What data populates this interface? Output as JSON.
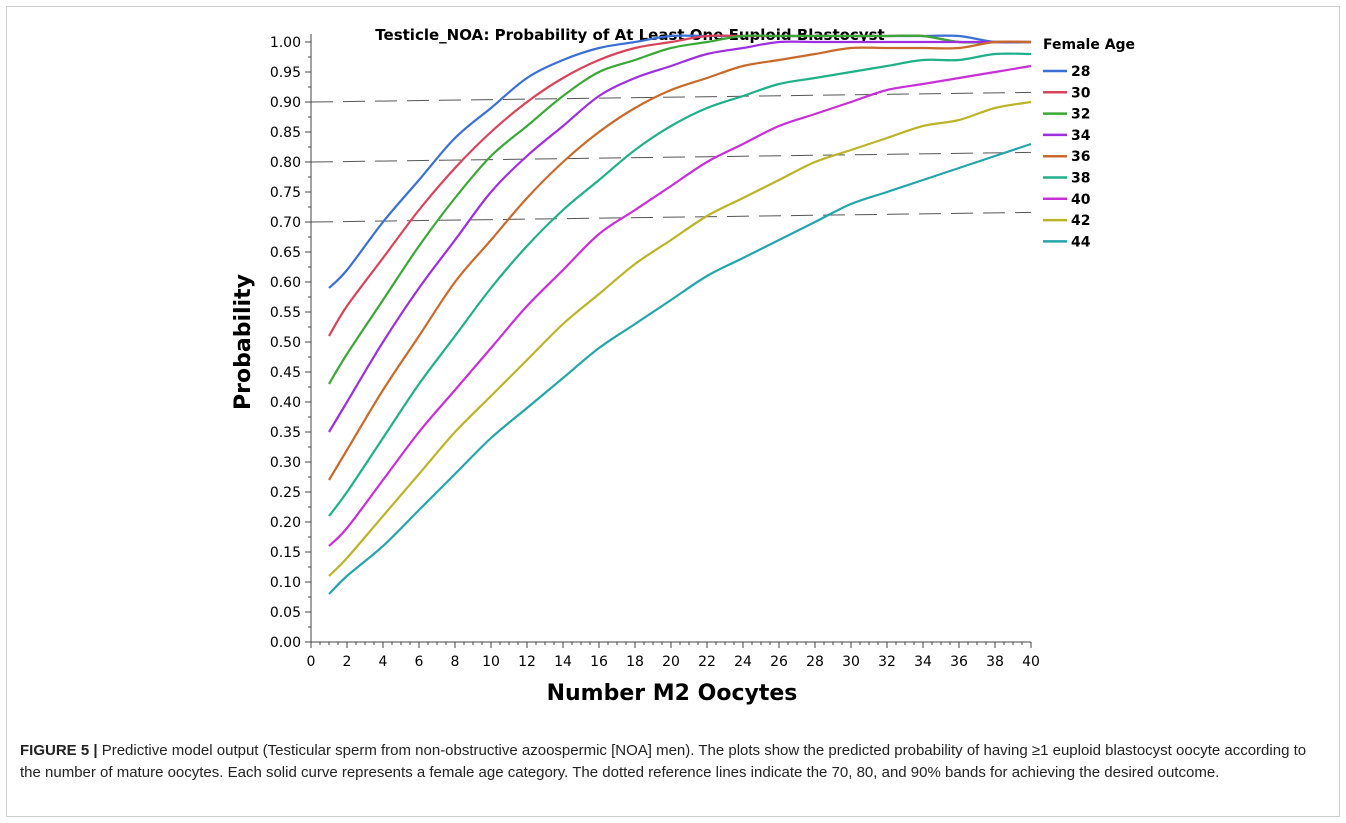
{
  "chart_data": {
    "type": "line",
    "title": "Testicle_NOA: Probability of At Least One Euploid Blastocyst",
    "xlabel": "Number M2 Oocytes",
    "ylabel": "Probability",
    "xlim": [
      0,
      40
    ],
    "ylim": [
      0,
      1.0
    ],
    "x_ticks": [
      "0",
      "2",
      "4",
      "6",
      "8",
      "10",
      "12",
      "14",
      "16",
      "18",
      "20",
      "22",
      "24",
      "26",
      "28",
      "30",
      "32",
      "34",
      "36",
      "38",
      "40"
    ],
    "y_ticks": [
      "0.00",
      "0.05",
      "0.10",
      "0.15",
      "0.20",
      "0.25",
      "0.30",
      "0.35",
      "0.40",
      "0.45",
      "0.50",
      "0.55",
      "0.60",
      "0.65",
      "0.70",
      "0.75",
      "0.80",
      "0.85",
      "0.90",
      "0.95",
      "1.00"
    ],
    "grid": false,
    "legend_title": "Female Age",
    "legend_position": "right",
    "x": [
      1,
      2,
      4,
      6,
      8,
      10,
      12,
      14,
      16,
      18,
      20,
      22,
      24,
      26,
      28,
      30,
      32,
      34,
      36,
      38,
      40
    ],
    "series": [
      {
        "name": "28",
        "color": "#3b6fd8",
        "values": [
          0.59,
          0.62,
          0.7,
          0.77,
          0.84,
          0.89,
          0.94,
          0.97,
          0.99,
          1.0,
          1.01,
          1.01,
          1.01,
          1.01,
          1.01,
          1.01,
          1.01,
          1.01,
          1.01,
          1.0,
          1.0
        ]
      },
      {
        "name": "30",
        "color": "#d9435a",
        "values": [
          0.51,
          0.56,
          0.64,
          0.72,
          0.79,
          0.85,
          0.9,
          0.94,
          0.97,
          0.99,
          1.0,
          1.01,
          1.01,
          1.01,
          1.01,
          1.01,
          1.01,
          1.01,
          1.0,
          1.0,
          1.0
        ]
      },
      {
        "name": "32",
        "color": "#3aa836",
        "values": [
          0.43,
          0.48,
          0.57,
          0.66,
          0.74,
          0.81,
          0.86,
          0.91,
          0.95,
          0.97,
          0.99,
          1.0,
          1.01,
          1.01,
          1.01,
          1.01,
          1.01,
          1.01,
          1.0,
          1.0,
          1.0
        ]
      },
      {
        "name": "34",
        "color": "#9d2fe0",
        "values": [
          0.35,
          0.4,
          0.5,
          0.59,
          0.67,
          0.75,
          0.81,
          0.86,
          0.91,
          0.94,
          0.96,
          0.98,
          0.99,
          1.0,
          1.0,
          1.0,
          1.0,
          1.0,
          1.0,
          1.0,
          1.0
        ]
      },
      {
        "name": "36",
        "color": "#c9692a",
        "values": [
          0.27,
          0.32,
          0.42,
          0.51,
          0.6,
          0.67,
          0.74,
          0.8,
          0.85,
          0.89,
          0.92,
          0.94,
          0.96,
          0.97,
          0.98,
          0.99,
          0.99,
          0.99,
          0.99,
          1.0,
          1.0
        ]
      },
      {
        "name": "38",
        "color": "#1fb08a",
        "values": [
          0.21,
          0.25,
          0.34,
          0.43,
          0.51,
          0.59,
          0.66,
          0.72,
          0.77,
          0.82,
          0.86,
          0.89,
          0.91,
          0.93,
          0.94,
          0.95,
          0.96,
          0.97,
          0.97,
          0.98,
          0.98
        ]
      },
      {
        "name": "40",
        "color": "#c82fd9",
        "values": [
          0.16,
          0.19,
          0.27,
          0.35,
          0.42,
          0.49,
          0.56,
          0.62,
          0.68,
          0.72,
          0.76,
          0.8,
          0.83,
          0.86,
          0.88,
          0.9,
          0.92,
          0.93,
          0.94,
          0.95,
          0.96
        ]
      },
      {
        "name": "42",
        "color": "#bcb428",
        "values": [
          0.11,
          0.14,
          0.21,
          0.28,
          0.35,
          0.41,
          0.47,
          0.53,
          0.58,
          0.63,
          0.67,
          0.71,
          0.74,
          0.77,
          0.8,
          0.82,
          0.84,
          0.86,
          0.87,
          0.89,
          0.9
        ]
      },
      {
        "name": "44",
        "color": "#24a5ad",
        "values": [
          0.08,
          0.11,
          0.16,
          0.22,
          0.28,
          0.34,
          0.39,
          0.44,
          0.49,
          0.53,
          0.57,
          0.61,
          0.64,
          0.67,
          0.7,
          0.73,
          0.75,
          0.77,
          0.79,
          0.81,
          0.83
        ]
      }
    ],
    "reference_lines": [
      {
        "values": [
          0.7,
          0.716
        ],
        "style": "dashed"
      },
      {
        "values": [
          0.8,
          0.816
        ],
        "style": "dashed"
      },
      {
        "values": [
          0.9,
          0.916
        ],
        "style": "dashed"
      }
    ]
  },
  "caption": {
    "label": "FIGURE 5 |",
    "text": " Predictive model output (Testicular sperm from non-obstructive azoospermic [NOA] men). The plots show the predicted probability of having ≥1 euploid blastocyst oocyte according to the number of mature oocytes. Each solid curve represents a female age category. The dotted reference lines indicate the 70, 80, and 90% bands for achieving the desired outcome."
  }
}
